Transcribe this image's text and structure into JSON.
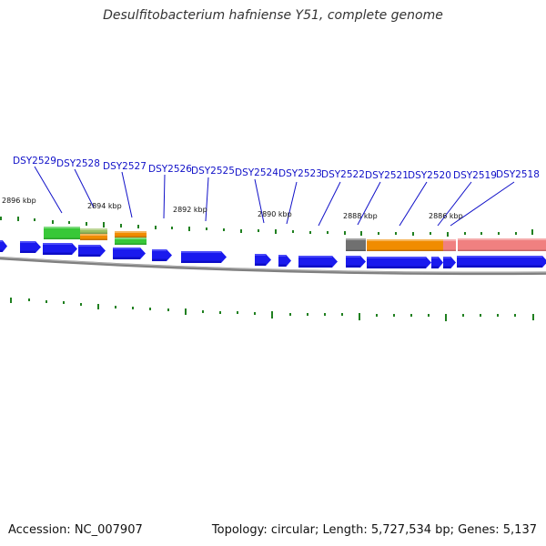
{
  "title": "Desulfitobacterium hafniense Y51, complete genome",
  "footer": {
    "accession": "Accession: NC_007907",
    "summary": "Topology: circular; Length: 5,727,534 bp; Genes: 5,137"
  },
  "colors": {
    "cds": "#1a1aee",
    "green_feature": "#38c838",
    "orange_feature": "#f08c00",
    "pink_feature": "#f08080",
    "gray_feature": "#707070",
    "tick": "#208020",
    "label": "#1010c8",
    "backbone": "#808080"
  },
  "gene_labels": [
    "DSY2529",
    "DSY2528",
    "DSY2527",
    "DSY2526",
    "DSY2525",
    "DSY2524",
    "DSY2523",
    "DSY2522",
    "DSY2521",
    "DSY2520",
    "DSY2519",
    "DSY2518"
  ],
  "kbp_labels": [
    "2896 kbp",
    "2894 kbp",
    "2892 kbp",
    "2890 kbp",
    "2888 kbp",
    "2886 kbp"
  ]
}
